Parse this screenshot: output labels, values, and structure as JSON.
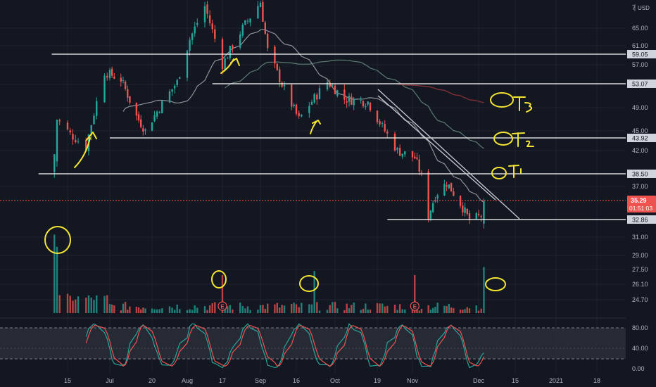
{
  "chart_data": {
    "type": "candlestick",
    "currency": "USD",
    "price_axis": {
      "ticks": [
        "65.00",
        "61.00",
        "57.00",
        "53.00",
        "49.00",
        "45.00",
        "42.00",
        "37.00",
        "31.00",
        "29.00",
        "27.50",
        "26.10",
        "24.70"
      ],
      "tick_values": [
        65,
        61,
        57,
        53,
        49,
        45,
        42,
        37,
        31,
        29,
        27.5,
        26.1,
        24.7
      ],
      "top_label": "7"
    },
    "level_labels": [
      {
        "text": "59.05",
        "value": 59.05,
        "line_start_date": "2020-06-09"
      },
      {
        "text": "53.07",
        "value": 53.07,
        "line_start_date": "2020-08-13"
      },
      {
        "text": "43.92",
        "value": 43.92,
        "line_start_date": "2020-07-01"
      },
      {
        "text": "38.50",
        "value": 38.5,
        "line_start_date": "2020-06-04"
      },
      {
        "text": "32.86",
        "value": 32.86,
        "line_start_date": "2020-10-23"
      }
    ],
    "last_price": {
      "text": "35.29",
      "value": 35.29,
      "countdown": "01:51:03"
    },
    "x_axis": {
      "labels": [
        "15",
        "Jul",
        "20",
        "Aug",
        "17",
        "Sep",
        "16",
        "Oct",
        "19",
        "Nov",
        "Dec",
        "15",
        "2021",
        "18"
      ],
      "label_dates": [
        "2020-06-15",
        "2020-07-01",
        "2020-07-20",
        "2020-08-03",
        "2020-08-17",
        "2020-09-01",
        "2020-09-16",
        "2020-10-01",
        "2020-10-19",
        "2020-11-02",
        "2020-12-01",
        "2020-12-15",
        "2021-01-01",
        "2021-01-18"
      ]
    },
    "ohlc_anchors": [
      {
        "date": "2020-06-10",
        "close": 40.5
      },
      {
        "date": "2020-06-11",
        "close": 47.0
      },
      {
        "date": "2020-06-16",
        "close": 44.5
      },
      {
        "date": "2020-06-22",
        "close": 42.5
      },
      {
        "date": "2020-06-29",
        "close": 55.5
      },
      {
        "date": "2020-07-06",
        "close": 54.0
      },
      {
        "date": "2020-07-13",
        "close": 47.5
      },
      {
        "date": "2020-07-17",
        "close": 45.0
      },
      {
        "date": "2020-07-23",
        "close": 49.0
      },
      {
        "date": "2020-07-30",
        "close": 53.5
      },
      {
        "date": "2020-08-04",
        "close": 62.5
      },
      {
        "date": "2020-08-10",
        "close": 70.0
      },
      {
        "date": "2020-08-17",
        "close": 57.0
      },
      {
        "date": "2020-08-25",
        "close": 65.0
      },
      {
        "date": "2020-09-01",
        "close": 71.0
      },
      {
        "date": "2020-09-04",
        "close": 60.0
      },
      {
        "date": "2020-09-10",
        "close": 53.0
      },
      {
        "date": "2020-09-17",
        "close": 47.0
      },
      {
        "date": "2020-09-21",
        "close": 49.5
      },
      {
        "date": "2020-09-28",
        "close": 53.5
      },
      {
        "date": "2020-10-05",
        "close": 50.5
      },
      {
        "date": "2020-10-15",
        "close": 50.0
      },
      {
        "date": "2020-10-22",
        "close": 45.0
      },
      {
        "date": "2020-10-27",
        "close": 42.0
      },
      {
        "date": "2020-11-03",
        "close": 41.0
      },
      {
        "date": "2020-11-06",
        "close": 38.5
      },
      {
        "date": "2020-11-09",
        "close": 33.5
      },
      {
        "date": "2020-11-12",
        "close": 36.0
      },
      {
        "date": "2020-11-17",
        "close": 37.5
      },
      {
        "date": "2020-11-23",
        "close": 35.0
      },
      {
        "date": "2020-11-27",
        "close": 33.0
      },
      {
        "date": "2020-12-02",
        "close": 33.5
      },
      {
        "date": "2020-12-03",
        "close": 35.29
      }
    ],
    "volume_spikes": [
      {
        "date": "2020-06-10",
        "height": 0.97
      },
      {
        "date": "2020-06-11",
        "height": 0.82
      },
      {
        "date": "2020-08-17",
        "height": 0.47
      },
      {
        "date": "2020-09-23",
        "height": 0.52
      },
      {
        "date": "2020-11-03",
        "height": 0.47
      },
      {
        "date": "2020-12-03",
        "height": 0.57
      }
    ],
    "earnings_markers": [
      {
        "label": "E",
        "date": "2020-08-17"
      },
      {
        "label": "E",
        "date": "2020-11-03"
      }
    ],
    "stoch_rsi": {
      "ticks": [
        "80.00",
        "40.00",
        "0.00"
      ],
      "tick_values": [
        80,
        40,
        0
      ],
      "band": [
        20,
        80
      ]
    },
    "colors": {
      "background": "#131722",
      "up": "#26a69a",
      "down": "#ef5350",
      "annotation": "#f5e533",
      "level_line": "#ffffff",
      "ma_fast": "#8d9397",
      "ma_slow": "#7d2f34"
    }
  }
}
